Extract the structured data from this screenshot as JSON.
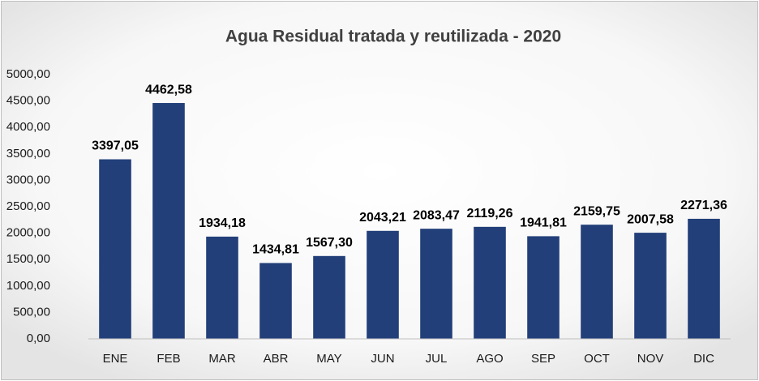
{
  "chart_data": {
    "type": "bar",
    "title": "Agua Residual tratada y reutilizada - 2020",
    "categories": [
      "ENE",
      "FEB",
      "MAR",
      "ABR",
      "MAY",
      "JUN",
      "JUL",
      "AGO",
      "SEP",
      "OCT",
      "NOV",
      "DIC"
    ],
    "values": [
      3397.05,
      4462.58,
      1934.18,
      1434.81,
      1567.3,
      2043.21,
      2083.47,
      2119.26,
      1941.81,
      2159.75,
      2007.58,
      2271.36
    ],
    "value_labels": [
      "3397,05",
      "4462,58",
      "1934,18",
      "1434,81",
      "1567,30",
      "2043,21",
      "2083,47",
      "2119,26",
      "1941,81",
      "2159,75",
      "2007,58",
      "2271,36"
    ],
    "color": "#223f79",
    "ylim": [
      0,
      5000
    ],
    "yticks": [
      {
        "value": 0,
        "label": "0,00"
      },
      {
        "value": 500,
        "label": "500,00"
      },
      {
        "value": 1000,
        "label": "1000,00"
      },
      {
        "value": 1500,
        "label": "1500,00"
      },
      {
        "value": 2000,
        "label": "2000,00"
      },
      {
        "value": 2500,
        "label": "2500,00"
      },
      {
        "value": 3000,
        "label": "3000,00"
      },
      {
        "value": 3500,
        "label": "3500,00"
      },
      {
        "value": 4000,
        "label": "4000,00"
      },
      {
        "value": 4500,
        "label": "4500,00"
      },
      {
        "value": 5000,
        "label": "5000,00"
      }
    ],
    "grid": false
  }
}
